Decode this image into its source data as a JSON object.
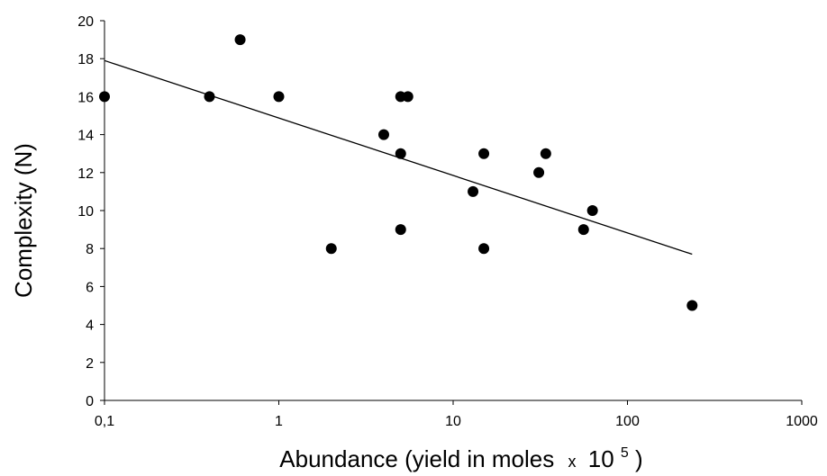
{
  "chart_data": {
    "type": "scatter",
    "xlabel": "Abundance (yield in moles",
    "xlabel_multiplier": "x",
    "xlabel_power_base": "10",
    "xlabel_exponent": "5",
    "xlabel_close": ")",
    "ylabel": "Complexity (N)",
    "x_scale": "log",
    "xlim": [
      0.1,
      1000
    ],
    "ylim": [
      0,
      20
    ],
    "x_ticks": [
      0.1,
      1,
      10,
      100,
      1000
    ],
    "x_tick_labels": [
      "0,1",
      "1",
      "10",
      "100",
      "1000"
    ],
    "y_ticks": [
      0,
      2,
      4,
      6,
      8,
      10,
      12,
      14,
      16,
      18,
      20
    ],
    "y_tick_labels": [
      "0",
      "2",
      "4",
      "6",
      "8",
      "10",
      "12",
      "14",
      "16",
      "18",
      "20"
    ],
    "grid": false,
    "legend": "none",
    "marker_color": "#000000",
    "points": [
      {
        "x": 0.1,
        "y": 16
      },
      {
        "x": 0.4,
        "y": 16
      },
      {
        "x": 0.6,
        "y": 19
      },
      {
        "x": 1,
        "y": 16
      },
      {
        "x": 2,
        "y": 8
      },
      {
        "x": 4,
        "y": 14
      },
      {
        "x": 5,
        "y": 16
      },
      {
        "x": 5.5,
        "y": 16
      },
      {
        "x": 5,
        "y": 13
      },
      {
        "x": 5,
        "y": 9
      },
      {
        "x": 13,
        "y": 11
      },
      {
        "x": 15,
        "y": 13
      },
      {
        "x": 15,
        "y": 8
      },
      {
        "x": 31,
        "y": 12
      },
      {
        "x": 34,
        "y": 13
      },
      {
        "x": 56,
        "y": 9
      },
      {
        "x": 63,
        "y": 10
      },
      {
        "x": 235,
        "y": 5
      }
    ],
    "trendline": {
      "type": "log",
      "color": "#000000",
      "start": {
        "x": 0.1,
        "y": 17.9
      },
      "end": {
        "x": 235,
        "y": 7.7
      }
    }
  }
}
